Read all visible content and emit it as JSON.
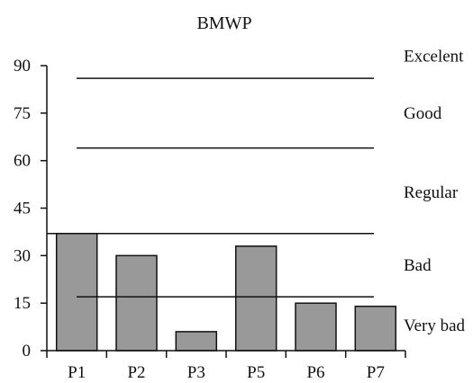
{
  "chart_data": {
    "type": "bar",
    "title": "BMWP",
    "xlabel": "",
    "ylabel": "",
    "categories": [
      "P1",
      "P2",
      "P3",
      "P5",
      "P6",
      "P7"
    ],
    "values": [
      37,
      30,
      6,
      33,
      15,
      14
    ],
    "ylim": [
      0,
      90
    ],
    "yticks": [
      0,
      15,
      30,
      45,
      60,
      75,
      90
    ],
    "grid": false,
    "bar_color": "#999999",
    "thresholds": [
      17,
      37,
      64,
      86
    ],
    "zones": [
      {
        "label": "Excelent",
        "value": 93
      },
      {
        "label": "Good",
        "value": 75
      },
      {
        "label": "Regular",
        "value": 50
      },
      {
        "label": "Bad",
        "value": 27
      },
      {
        "label": "Very bad",
        "value": 8
      }
    ]
  }
}
